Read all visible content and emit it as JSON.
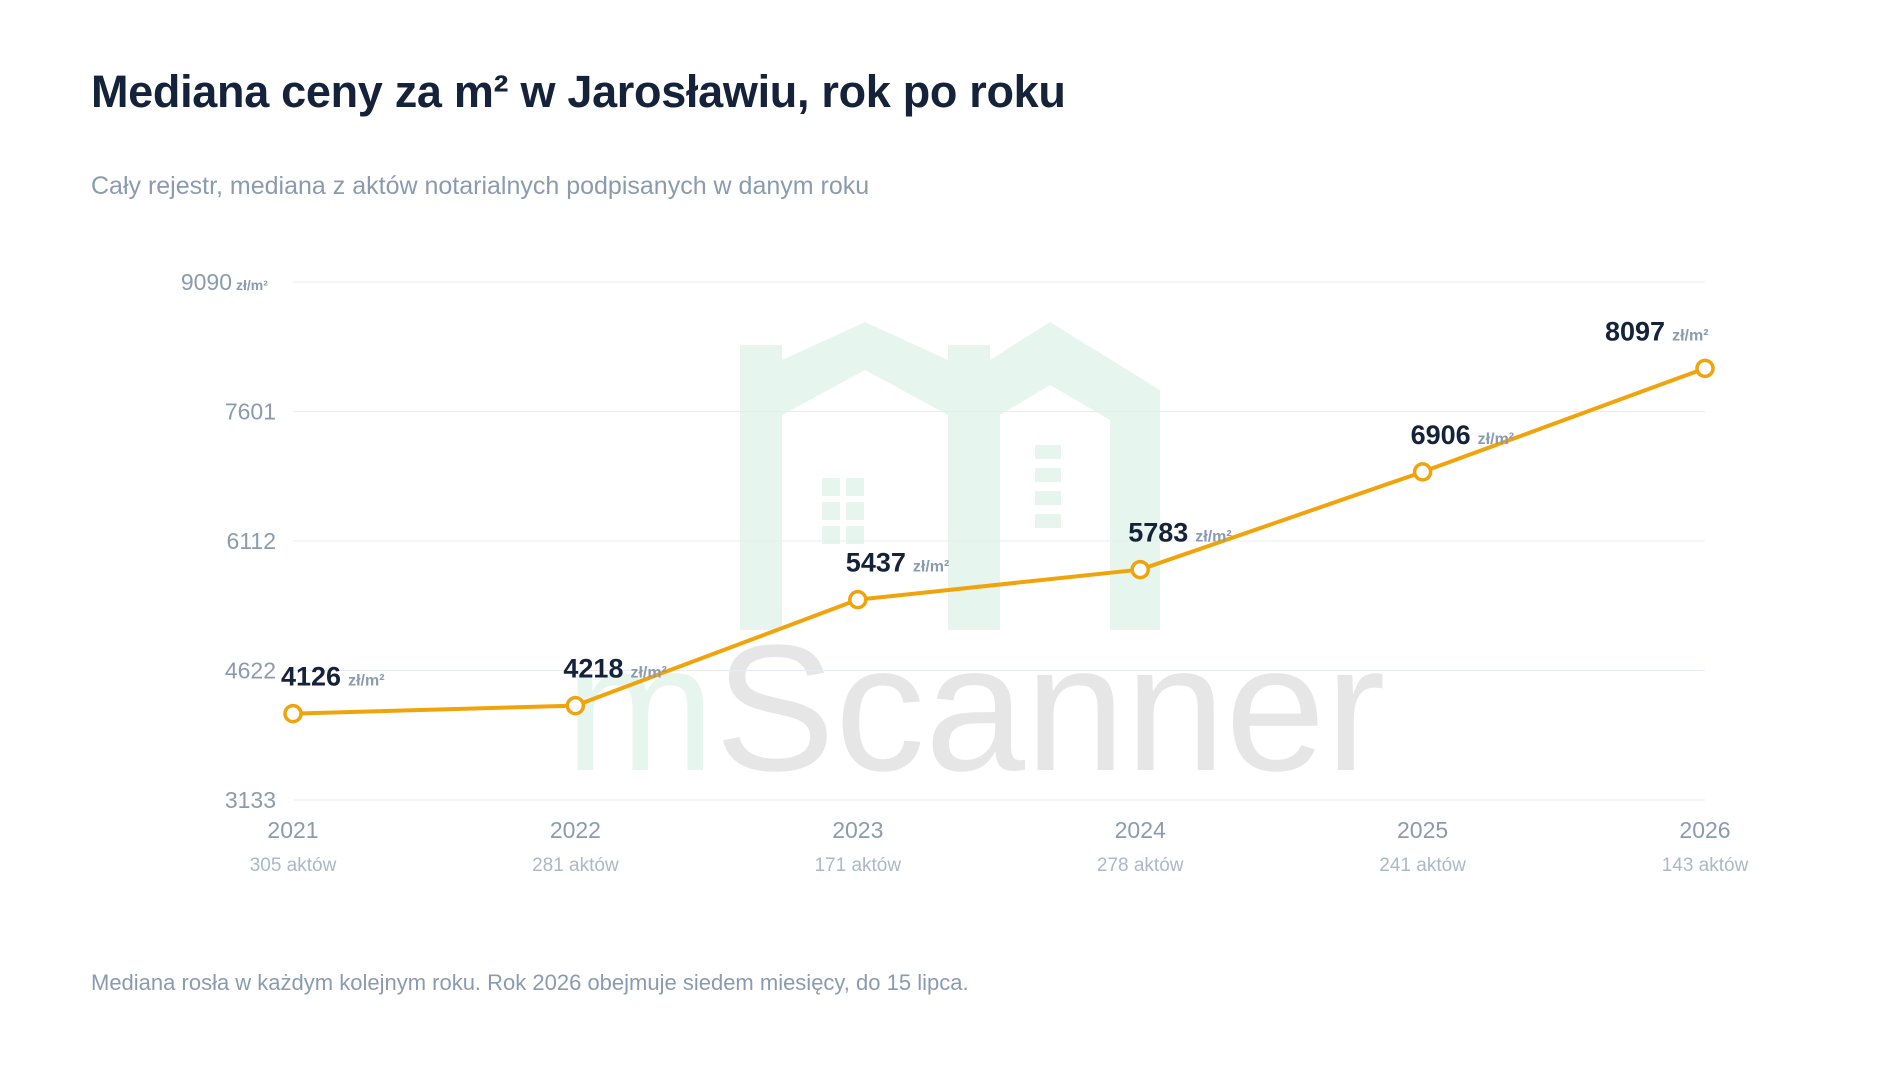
{
  "header": {
    "title": "Mediana ceny za m² w Jarosławiu, rok po roku",
    "subtitle": "Cały rejestr, mediana z aktów notarialnych podpisanych w danym roku"
  },
  "footer": {
    "note": "Mediana rosła w każdym kolejnym roku. Rok 2026 obejmuje siedem miesięcy, do 15 lipca."
  },
  "watermark": {
    "text": "mScanner",
    "icon": "house-logo-icon"
  },
  "colors": {
    "line": "#f0a30a",
    "title": "#14223a",
    "muted": "#8a9bb0",
    "grid": "#e8ecf0",
    "watermark_green": "#e6f6ef",
    "watermark_gray": "#e6e6e6"
  },
  "chart_data": {
    "type": "line",
    "title": "Mediana ceny za m² w Jarosławiu, rok po roku",
    "subtitle": "Cały rejestr, mediana z aktów notarialnych podpisanych w danym roku",
    "categories": [
      "2021",
      "2022",
      "2023",
      "2024",
      "2025",
      "2026"
    ],
    "category_sublabels": [
      "305 aktów",
      "281 aktów",
      "171 aktów",
      "278 aktów",
      "241 aktów",
      "143 aktów"
    ],
    "series": [
      {
        "values": [
          4126,
          4218,
          5437,
          5783,
          6906,
          8097
        ]
      }
    ],
    "value_unit": "zł/m²",
    "ylim": [
      3133,
      9090
    ],
    "yticks": [
      3133,
      4622,
      6112,
      7601,
      9090
    ],
    "ytick_labels": [
      "3133",
      "4622",
      "6112",
      "7601",
      "9090"
    ],
    "top_tick_unit": "zł/m²",
    "grid": true,
    "legend": "none"
  }
}
